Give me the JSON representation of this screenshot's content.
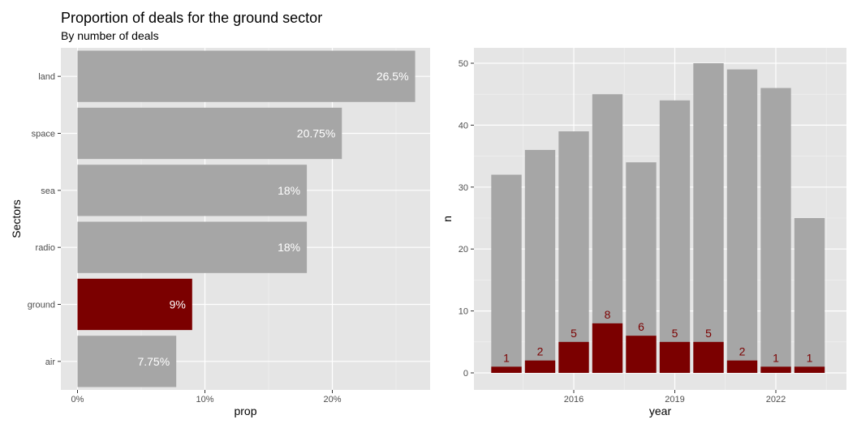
{
  "title": "Proportion of deals for the ground sector",
  "subtitle": "By number of deals",
  "colors": {
    "gray": "#a6a6a6",
    "highlight": "#7b0000",
    "panel": "#e5e5e5",
    "grid": "#ffffff"
  },
  "chart_data": [
    {
      "type": "bar",
      "orientation": "horizontal",
      "xlabel": "prop",
      "ylabel": "Sectors",
      "xlim": [
        0,
        0.28
      ],
      "x_ticks": [
        0,
        0.1,
        0.2
      ],
      "x_tick_labels": [
        "0%",
        "10%",
        "20%"
      ],
      "categories": [
        "land",
        "space",
        "sea",
        "radio",
        "ground",
        "air"
      ],
      "values": [
        0.265,
        0.2075,
        0.18,
        0.18,
        0.09,
        0.0775
      ],
      "labels": [
        "26.5%",
        "20.75%",
        "18%",
        "18%",
        "9%",
        "7.75%"
      ],
      "highlight": "ground"
    },
    {
      "type": "bar",
      "stacked_overlay": true,
      "xlabel": "year",
      "ylabel": "n",
      "ylim": [
        0,
        52
      ],
      "y_ticks": [
        0,
        10,
        20,
        30,
        40,
        50
      ],
      "x_ticks": [
        2016,
        2019,
        2022
      ],
      "x": [
        2014,
        2015,
        2016,
        2017,
        2018,
        2019,
        2020,
        2021,
        2022,
        2023
      ],
      "series": [
        {
          "values": [
            32,
            36,
            39,
            45,
            34,
            44,
            50,
            49,
            46,
            25
          ]
        },
        {
          "values": [
            1,
            2,
            5,
            8,
            6,
            5,
            5,
            2,
            1,
            1
          ]
        }
      ]
    }
  ]
}
